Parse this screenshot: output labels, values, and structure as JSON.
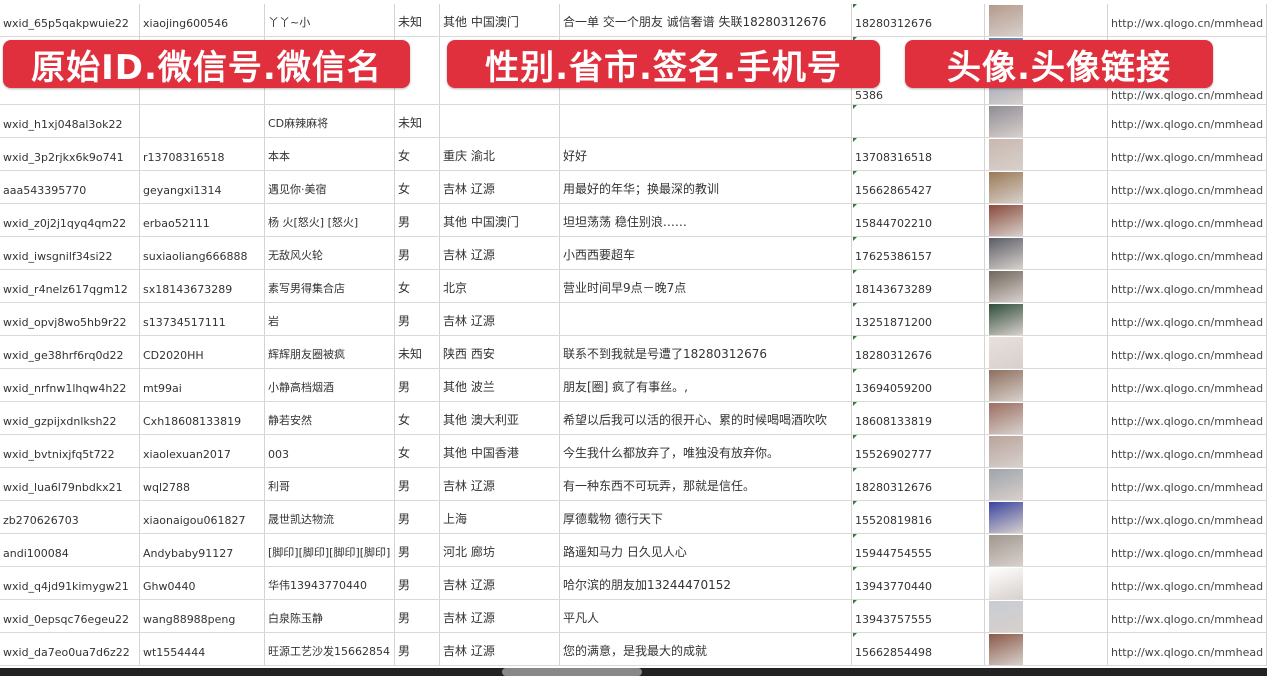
{
  "rows": [
    [
      "wxid_65p5qakpwuie22",
      "xiaojing600546",
      "丫丫~小",
      "未知",
      "其他 中国澳门",
      "合一单 交一个朋友 诚信奢谱 失联18280312676",
      "18280312676",
      "http://wx.qlogo.cn/mmhead"
    ],
    [
      "",
      "",
      "",
      "",
      "",
      "",
      "5386",
      "http://wx.qlogo.cn/mmhead"
    ],
    [
      "wxid_h1xj048al3ok22",
      "",
      "CD麻辣麻将",
      "未知",
      "",
      "",
      "",
      "http://wx.qlogo.cn/mmhead"
    ],
    [
      "wxid_3p2rjkx6k9o741",
      "r13708316518",
      "本本",
      "女",
      "重庆 渝北",
      "好好",
      "13708316518",
      "http://wx.qlogo.cn/mmhead"
    ],
    [
      "aaa543395770",
      "geyangxi1314",
      "遇见你·美宿",
      "女",
      "吉林 辽源",
      "用最好的年华；换最深的教训",
      "15662865427",
      "http://wx.qlogo.cn/mmhead"
    ],
    [
      "wxid_z0j2j1qyq4qm22",
      "erbao52111",
      "杨 火[怒火] [怒火]",
      "男",
      "其他 中国澳门",
      "坦坦荡荡 稳住别浪……",
      "15844702210",
      "http://wx.qlogo.cn/mmhead"
    ],
    [
      "wxid_iwsgnilf34si22",
      "suxiaoliang666888",
      "无敌风火轮",
      "男",
      "吉林 辽源",
      "小西西要超车",
      "17625386157",
      "http://wx.qlogo.cn/mmhead"
    ],
    [
      "wxid_r4nelz617qgm12",
      "sx18143673289",
      "素写男得集合店",
      "女",
      "北京",
      "营业时间早9点－晚7点",
      "18143673289",
      "http://wx.qlogo.cn/mmhead"
    ],
    [
      "wxid_opvj8wo5hb9r22",
      "s13734517111",
      "岩",
      "男",
      "吉林 辽源",
      "",
      "13251871200",
      "http://wx.qlogo.cn/mmhead"
    ],
    [
      "wxid_ge38hrf6rq0d22",
      "CD2020HH",
      "辉辉朋友圈被疯",
      "未知",
      "陕西 西安",
      "联系不到我就是号遭了18280312676",
      "18280312676",
      "http://wx.qlogo.cn/mmhead"
    ],
    [
      "wxid_nrfnw1lhqw4h22",
      "mt99ai",
      "小静高档烟酒",
      "男",
      "其他 波兰",
      "朋友[圈] 疯了有事丝。,",
      "13694059200",
      "http://wx.qlogo.cn/mmhead"
    ],
    [
      "wxid_gzpijxdnlksh22",
      "Cxh18608133819",
      "静若安然",
      "女",
      "其他 澳大利亚",
      "希望以后我可以活的很开心、累的时候喝喝酒吹吹",
      "18608133819",
      "http://wx.qlogo.cn/mmhead"
    ],
    [
      "wxid_bvtnixjfq5t722",
      "xiaolexuan2017",
      "003",
      "女",
      "其他 中国香港",
      "今生我什么都放弃了，唯独没有放弃你。",
      "15526902777",
      "http://wx.qlogo.cn/mmhead"
    ],
    [
      "wxid_lua6l79nbdkx21",
      "wql2788",
      "利哥",
      "男",
      "吉林 辽源",
      "有一种东西不可玩弄，那就是信任。",
      "18280312676",
      "http://wx.qlogo.cn/mmhead"
    ],
    [
      "zb270626703",
      "xiaonaigou061827",
      "晟世凯达物流",
      "男",
      "上海",
      "厚德载物 德行天下",
      "15520819816",
      "http://wx.qlogo.cn/mmhead"
    ],
    [
      "andi100084",
      "Andybaby91127",
      "[脚印][脚印][脚印][脚印]",
      "男",
      "河北 廊坊",
      "路遥知马力 日久见人心",
      "15944754555",
      "http://wx.qlogo.cn/mmhead"
    ],
    [
      "wxid_q4jd91kimygw21",
      "Ghw0440",
      "华伟13943770440",
      "男",
      "吉林 辽源",
      "哈尔滨的朋友加13244470152",
      "13943770440",
      "http://wx.qlogo.cn/mmhead"
    ],
    [
      "wxid_0epsqc76egeu22",
      "wang88988peng",
      "白泉陈玉静",
      "男",
      "吉林 辽源",
      "平凡人",
      "13943757555",
      "http://wx.qlogo.cn/mmhead"
    ],
    [
      "wxid_da7eo0ua7d6z22",
      "wt1554444",
      "旺源工艺沙发15662854",
      "男",
      "吉林 辽源",
      "您的满意，是我最大的成就",
      "15662854498",
      "http://wx.qlogo.cn/mmhead"
    ]
  ],
  "avatar_colors": [
    "#b49a8c",
    "#6a7ea8",
    "#8f8c94",
    "#c9b8ad",
    "#9a7a55",
    "#8a4a3a",
    "#5a5d66",
    "#70685c",
    "#2f4d3a",
    "#e8e0dc",
    "#8d6f5e",
    "#9b6f60",
    "#b8a49c",
    "#9ea4aa",
    "#3a44a0",
    "#a0988e",
    "#ffffff",
    "#c8ccd4",
    "#8a5a48"
  ],
  "overlay_labels": [
    "原始ID.微信号.微信名",
    "性别.省市.签名.手机号",
    "头像.头像链接"
  ],
  "overlay_color": "#e0303d"
}
